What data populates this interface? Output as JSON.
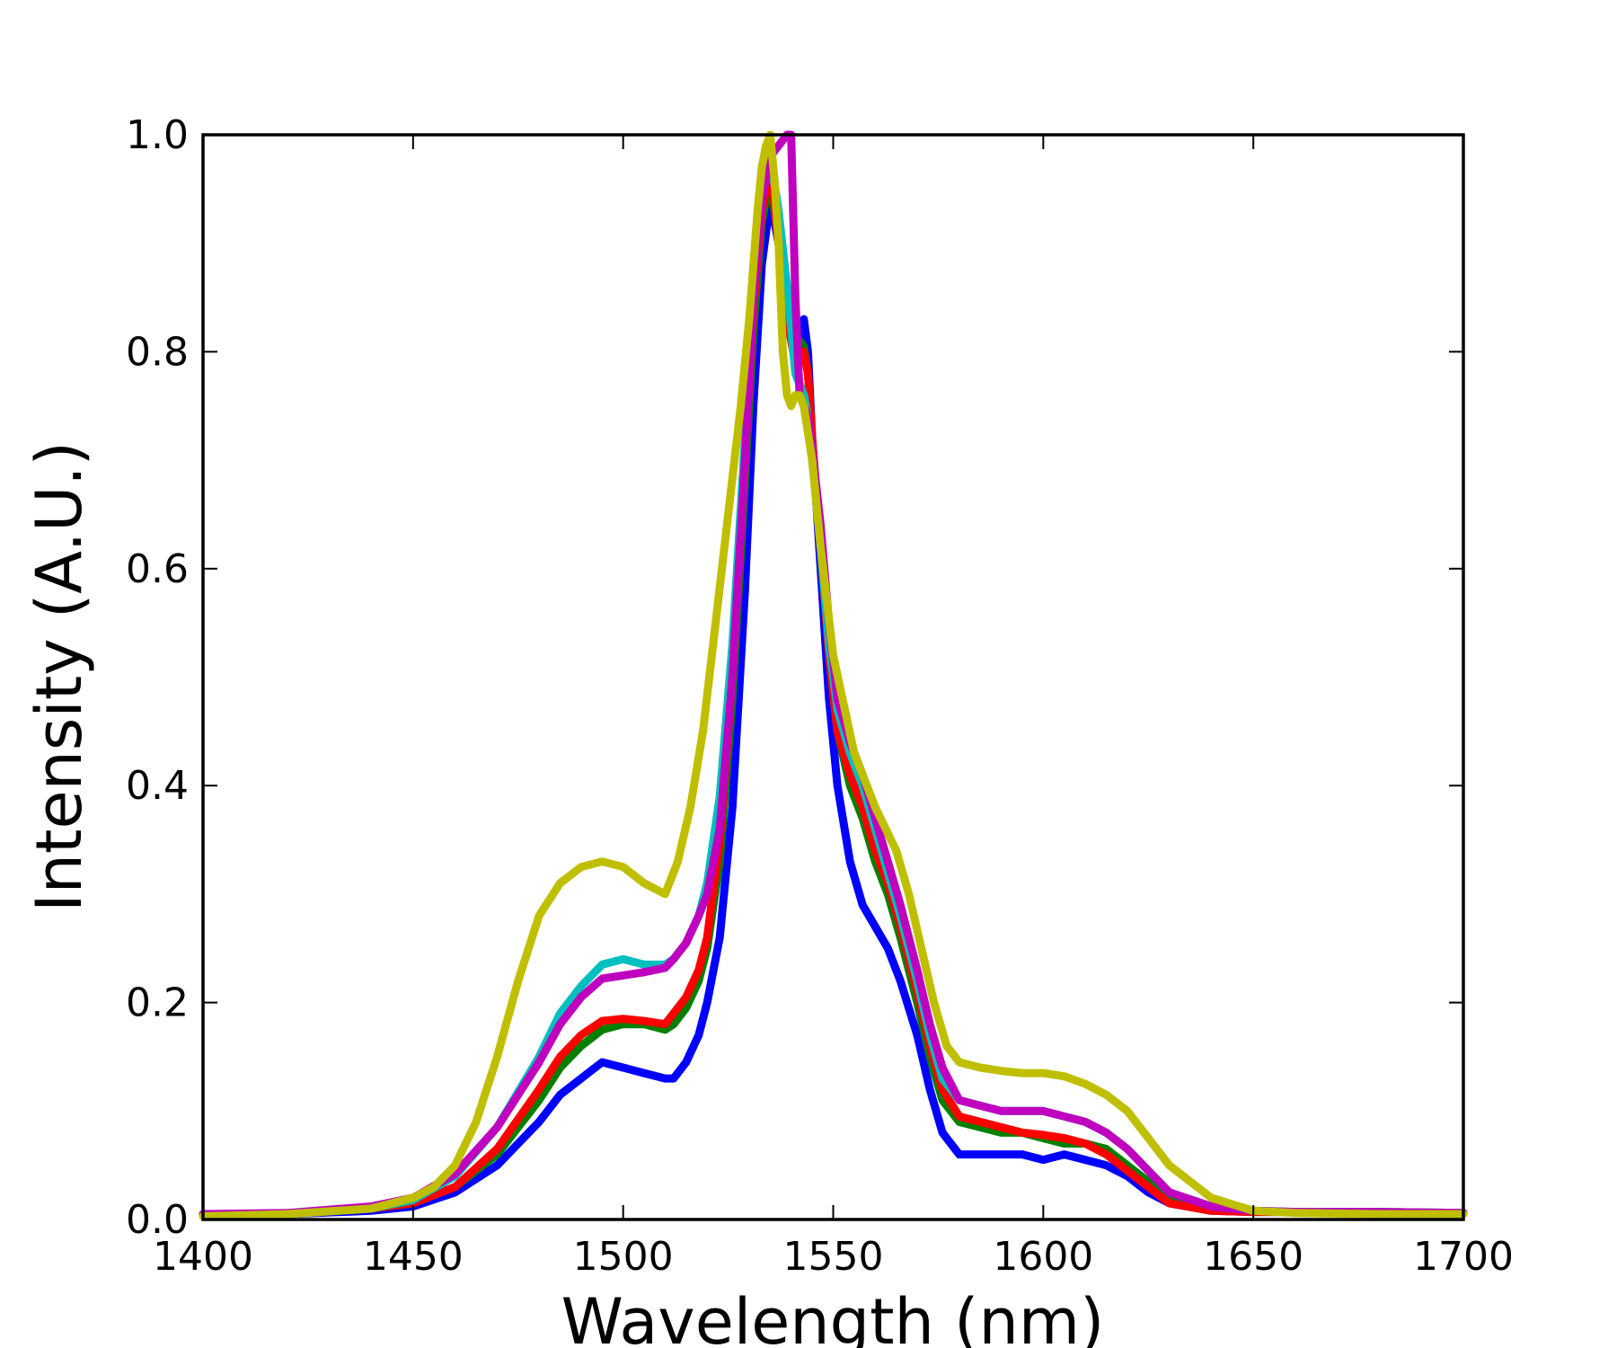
{
  "chart_data": {
    "type": "line",
    "title": "",
    "xlabel": "Wavelength (nm)",
    "ylabel": "Intensity (A.U.)",
    "xlim": [
      1400,
      1700
    ],
    "ylim": [
      0.0,
      1.0
    ],
    "xticks": [
      1400,
      1450,
      1500,
      1550,
      1600,
      1650,
      1700
    ],
    "xtick_labels": [
      "1400",
      "1450",
      "1500",
      "1550",
      "1600",
      "1650",
      "1700"
    ],
    "yticks": [
      0.0,
      0.2,
      0.4,
      0.6,
      0.8,
      1.0
    ],
    "ytick_labels": [
      "0.0",
      "0.2",
      "0.4",
      "0.6",
      "0.8",
      "1.0"
    ],
    "grid": false,
    "legend": "none",
    "series": [
      {
        "color": "#0000ff",
        "x": [
          1400,
          1420,
          1440,
          1450,
          1460,
          1470,
          1480,
          1485,
          1490,
          1495,
          1500,
          1505,
          1510,
          1512,
          1515,
          1518,
          1520,
          1523,
          1526,
          1529,
          1531,
          1533,
          1535,
          1537,
          1539,
          1541,
          1542,
          1543,
          1544,
          1545,
          1547,
          1549,
          1551,
          1554,
          1557,
          1560,
          1563,
          1566,
          1570,
          1573,
          1576,
          1580,
          1585,
          1590,
          1595,
          1600,
          1605,
          1610,
          1615,
          1620,
          1625,
          1630,
          1640,
          1650,
          1660,
          1680,
          1700
        ],
        "y": [
          0.005,
          0.005,
          0.008,
          0.012,
          0.025,
          0.05,
          0.09,
          0.115,
          0.13,
          0.145,
          0.14,
          0.135,
          0.13,
          0.13,
          0.145,
          0.17,
          0.2,
          0.26,
          0.38,
          0.58,
          0.75,
          0.88,
          0.94,
          0.9,
          0.84,
          0.8,
          0.82,
          0.83,
          0.8,
          0.72,
          0.6,
          0.48,
          0.4,
          0.33,
          0.29,
          0.27,
          0.25,
          0.22,
          0.17,
          0.12,
          0.08,
          0.06,
          0.06,
          0.06,
          0.06,
          0.055,
          0.06,
          0.055,
          0.05,
          0.04,
          0.025,
          0.015,
          0.008,
          0.007,
          0.007,
          0.006,
          0.006
        ]
      },
      {
        "color": "#008000",
        "x": [
          1400,
          1420,
          1440,
          1450,
          1460,
          1470,
          1480,
          1485,
          1490,
          1495,
          1500,
          1505,
          1510,
          1512,
          1515,
          1518,
          1520,
          1523,
          1526,
          1529,
          1531,
          1533,
          1535,
          1537,
          1539,
          1541,
          1542,
          1543,
          1544,
          1545,
          1547,
          1549,
          1551,
          1554,
          1557,
          1560,
          1563,
          1566,
          1570,
          1573,
          1576,
          1580,
          1585,
          1590,
          1595,
          1600,
          1605,
          1610,
          1615,
          1620,
          1625,
          1630,
          1640,
          1650,
          1660,
          1680,
          1700
        ],
        "y": [
          0.005,
          0.005,
          0.01,
          0.015,
          0.03,
          0.06,
          0.11,
          0.14,
          0.16,
          0.175,
          0.18,
          0.18,
          0.175,
          0.18,
          0.195,
          0.22,
          0.25,
          0.33,
          0.48,
          0.68,
          0.82,
          0.92,
          0.96,
          0.9,
          0.83,
          0.8,
          0.81,
          0.805,
          0.78,
          0.72,
          0.62,
          0.52,
          0.45,
          0.4,
          0.37,
          0.33,
          0.3,
          0.26,
          0.2,
          0.15,
          0.11,
          0.09,
          0.085,
          0.08,
          0.08,
          0.075,
          0.07,
          0.07,
          0.065,
          0.05,
          0.035,
          0.02,
          0.01,
          0.008,
          0.007,
          0.007,
          0.006
        ]
      },
      {
        "color": "#ff0000",
        "x": [
          1400,
          1420,
          1440,
          1450,
          1460,
          1470,
          1480,
          1485,
          1490,
          1495,
          1500,
          1505,
          1510,
          1512,
          1515,
          1518,
          1520,
          1523,
          1526,
          1529,
          1531,
          1533,
          1535,
          1537,
          1539,
          1541,
          1542,
          1543,
          1544,
          1545,
          1547,
          1549,
          1551,
          1554,
          1557,
          1560,
          1563,
          1566,
          1570,
          1573,
          1576,
          1580,
          1585,
          1590,
          1595,
          1600,
          1605,
          1610,
          1615,
          1620,
          1625,
          1630,
          1640,
          1650,
          1660,
          1680,
          1700
        ],
        "y": [
          0.005,
          0.005,
          0.01,
          0.015,
          0.03,
          0.065,
          0.12,
          0.15,
          0.17,
          0.183,
          0.185,
          0.183,
          0.18,
          0.19,
          0.205,
          0.23,
          0.26,
          0.35,
          0.5,
          0.7,
          0.84,
          0.93,
          0.97,
          0.9,
          0.83,
          0.79,
          0.8,
          0.8,
          0.78,
          0.72,
          0.62,
          0.52,
          0.45,
          0.41,
          0.38,
          0.34,
          0.31,
          0.27,
          0.21,
          0.16,
          0.12,
          0.095,
          0.09,
          0.085,
          0.08,
          0.078,
          0.075,
          0.07,
          0.06,
          0.045,
          0.03,
          0.015,
          0.008,
          0.007,
          0.007,
          0.006,
          0.006
        ]
      },
      {
        "color": "#00bfbf",
        "x": [
          1400,
          1420,
          1440,
          1450,
          1460,
          1470,
          1480,
          1485,
          1490,
          1495,
          1500,
          1505,
          1510,
          1512,
          1515,
          1518,
          1520,
          1523,
          1526,
          1529,
          1531,
          1533,
          1535,
          1537,
          1539,
          1541,
          1542,
          1543,
          1544,
          1545,
          1547,
          1549,
          1551,
          1554,
          1557,
          1560,
          1563,
          1566,
          1570,
          1573,
          1576,
          1580,
          1585,
          1590,
          1595,
          1600,
          1605,
          1610,
          1615,
          1620,
          1625,
          1630,
          1640,
          1650,
          1660,
          1680,
          1700
        ],
        "y": [
          0.005,
          0.005,
          0.01,
          0.018,
          0.04,
          0.085,
          0.15,
          0.19,
          0.215,
          0.235,
          0.24,
          0.235,
          0.235,
          0.24,
          0.255,
          0.28,
          0.31,
          0.39,
          0.53,
          0.72,
          0.86,
          0.95,
          0.98,
          0.93,
          0.86,
          0.78,
          0.77,
          0.76,
          0.74,
          0.7,
          0.62,
          0.53,
          0.47,
          0.43,
          0.4,
          0.36,
          0.32,
          0.28,
          0.22,
          0.17,
          0.13,
          0.11,
          0.105,
          0.1,
          0.1,
          0.1,
          0.095,
          0.09,
          0.08,
          0.065,
          0.045,
          0.025,
          0.012,
          0.008,
          0.007,
          0.007,
          0.006
        ]
      },
      {
        "color": "#bf00bf",
        "x": [
          1400,
          1420,
          1440,
          1450,
          1460,
          1470,
          1480,
          1485,
          1490,
          1495,
          1500,
          1505,
          1510,
          1512,
          1515,
          1518,
          1520,
          1523,
          1526,
          1529,
          1531,
          1533,
          1535,
          1537,
          1539,
          1540,
          1541,
          1542,
          1543,
          1544,
          1545,
          1547,
          1549,
          1551,
          1554,
          1557,
          1560,
          1563,
          1566,
          1570,
          1573,
          1576,
          1580,
          1585,
          1590,
          1595,
          1600,
          1605,
          1610,
          1615,
          1620,
          1625,
          1630,
          1640,
          1650,
          1660,
          1680,
          1700
        ],
        "y": [
          0.005,
          0.006,
          0.012,
          0.02,
          0.042,
          0.085,
          0.145,
          0.18,
          0.205,
          0.222,
          0.225,
          0.228,
          0.232,
          0.24,
          0.255,
          0.28,
          0.3,
          0.36,
          0.5,
          0.7,
          0.85,
          0.94,
          0.98,
          0.99,
          1.0,
          1.0,
          0.85,
          0.76,
          0.75,
          0.74,
          0.71,
          0.64,
          0.55,
          0.48,
          0.44,
          0.41,
          0.37,
          0.33,
          0.29,
          0.23,
          0.18,
          0.14,
          0.11,
          0.105,
          0.1,
          0.1,
          0.1,
          0.095,
          0.09,
          0.08,
          0.065,
          0.045,
          0.025,
          0.012,
          0.008,
          0.007,
          0.007,
          0.006
        ]
      },
      {
        "color": "#bfbf00",
        "x": [
          1400,
          1420,
          1440,
          1450,
          1455,
          1460,
          1465,
          1470,
          1475,
          1480,
          1485,
          1490,
          1495,
          1500,
          1505,
          1510,
          1513,
          1516,
          1519,
          1522,
          1525,
          1528,
          1530,
          1532,
          1533,
          1534,
          1535,
          1536,
          1537,
          1538,
          1539,
          1540,
          1541,
          1542,
          1543,
          1545,
          1547,
          1550,
          1555,
          1560,
          1565,
          1568,
          1571,
          1574,
          1577,
          1580,
          1585,
          1590,
          1595,
          1600,
          1605,
          1610,
          1615,
          1620,
          1625,
          1630,
          1640,
          1650,
          1660,
          1680,
          1700
        ],
        "y": [
          0.003,
          0.005,
          0.01,
          0.02,
          0.03,
          0.05,
          0.09,
          0.15,
          0.22,
          0.28,
          0.31,
          0.325,
          0.33,
          0.325,
          0.31,
          0.3,
          0.33,
          0.38,
          0.45,
          0.55,
          0.65,
          0.75,
          0.83,
          0.93,
          0.97,
          0.99,
          1.0,
          0.96,
          0.9,
          0.8,
          0.76,
          0.75,
          0.76,
          0.76,
          0.75,
          0.7,
          0.62,
          0.52,
          0.43,
          0.38,
          0.34,
          0.3,
          0.25,
          0.2,
          0.16,
          0.145,
          0.14,
          0.137,
          0.135,
          0.135,
          0.132,
          0.125,
          0.115,
          0.1,
          0.075,
          0.05,
          0.02,
          0.008,
          0.006,
          0.005,
          0.005
        ]
      }
    ]
  }
}
